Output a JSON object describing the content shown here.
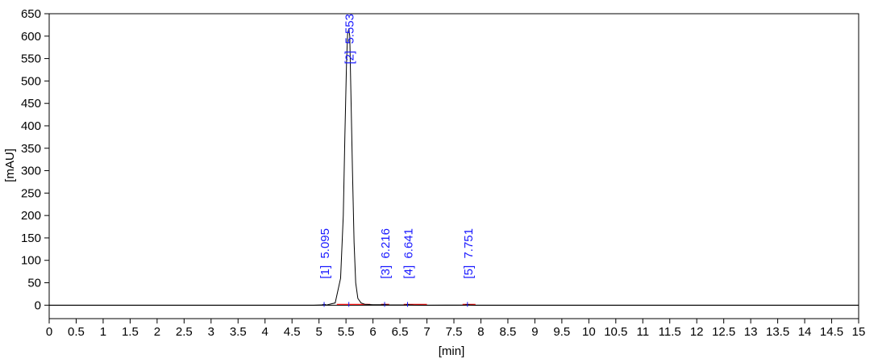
{
  "chart_data": {
    "type": "line",
    "xlabel": "[min]",
    "ylabel": "[mAU]",
    "xlim": [
      0,
      15
    ],
    "ylim": [
      -30,
      650
    ],
    "x_ticks": [
      "0",
      "0.5",
      "1",
      "1.5",
      "2",
      "2.5",
      "3",
      "3.5",
      "4",
      "4.5",
      "5",
      "5.5",
      "6",
      "6.5",
      "7",
      "7.5",
      "8",
      "8.5",
      "9",
      "9.5",
      "10",
      "10.5",
      "11",
      "11.5",
      "12",
      "12.5",
      "13",
      "13.5",
      "14",
      "14.5",
      "15"
    ],
    "y_ticks": [
      "0",
      "50",
      "100",
      "150",
      "200",
      "250",
      "300",
      "350",
      "400",
      "450",
      "500",
      "550",
      "600",
      "650"
    ],
    "grid": false,
    "colors": {
      "trace": "#000000",
      "baseline": "#ff0000",
      "peak_labels": "#1a1aff",
      "zero_line": "#000000"
    },
    "series": [
      {
        "x": [
          0,
          4.9,
          5.05,
          5.09,
          5.095,
          5.1,
          5.14,
          5.3,
          5.4,
          5.45,
          5.48,
          5.51,
          5.53,
          5.553,
          5.57,
          5.59,
          5.62,
          5.65,
          5.68,
          5.72,
          5.78,
          5.85,
          6.0,
          6.19,
          6.216,
          6.24,
          6.3,
          6.6,
          6.641,
          6.68,
          6.75,
          7.0,
          7.7,
          7.751,
          7.8,
          7.9,
          8.5,
          15
        ],
        "y": [
          0,
          0,
          0.5,
          2,
          3,
          2,
          0.5,
          5,
          60,
          200,
          380,
          540,
          605,
          617,
          600,
          480,
          300,
          140,
          50,
          15,
          5,
          2,
          1,
          1,
          2,
          1,
          0.5,
          0.5,
          2,
          0.8,
          0.4,
          0,
          0.3,
          1.5,
          0.5,
          0,
          0,
          0
        ]
      }
    ],
    "baselines": [
      {
        "x": [
          5.33,
          5.95
        ]
      },
      {
        "x": [
          6.15,
          6.3
        ]
      },
      {
        "x": [
          6.57,
          7.0
        ]
      },
      {
        "x": [
          7.66,
          7.9
        ]
      }
    ],
    "peaks": [
      {
        "label": "[1]  5.095",
        "rt": 5.095
      },
      {
        "label": "[2]  5.553",
        "rt": 5.553
      },
      {
        "label": "[3]  6.216",
        "rt": 6.216
      },
      {
        "label": "[4]  6.641",
        "rt": 6.641
      },
      {
        "label": "[5]  7.751",
        "rt": 7.751
      }
    ]
  }
}
